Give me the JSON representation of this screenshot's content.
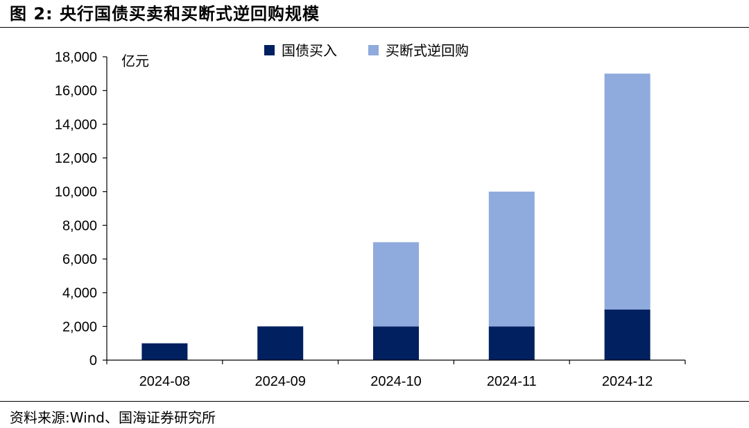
{
  "figure": {
    "title": "图 2:  央行国债买卖和买断式逆回购规模",
    "source": "资料来源:Wind、国海证券研究所"
  },
  "chart_data": {
    "type": "bar",
    "stacked": true,
    "categories": [
      "2024-08",
      "2024-09",
      "2024-10",
      "2024-11",
      "2024-12"
    ],
    "series": [
      {
        "name": "国债买入",
        "values": [
          1000,
          2000,
          2000,
          2000,
          3000
        ],
        "color": "#002060"
      },
      {
        "name": "买断式逆回购",
        "values": [
          0,
          0,
          5000,
          8000,
          14000
        ],
        "color": "#8FAADC"
      }
    ],
    "ylabel": "亿元",
    "ylim": [
      0,
      18000
    ],
    "yticks": [
      0,
      2000,
      4000,
      6000,
      8000,
      10000,
      12000,
      14000,
      16000,
      18000
    ],
    "ytick_labels": [
      "0",
      "2,000",
      "4,000",
      "6,000",
      "8,000",
      "10,000",
      "12,000",
      "14,000",
      "16,000",
      "18,000"
    ],
    "grid": false,
    "legend_position": "top-center"
  }
}
